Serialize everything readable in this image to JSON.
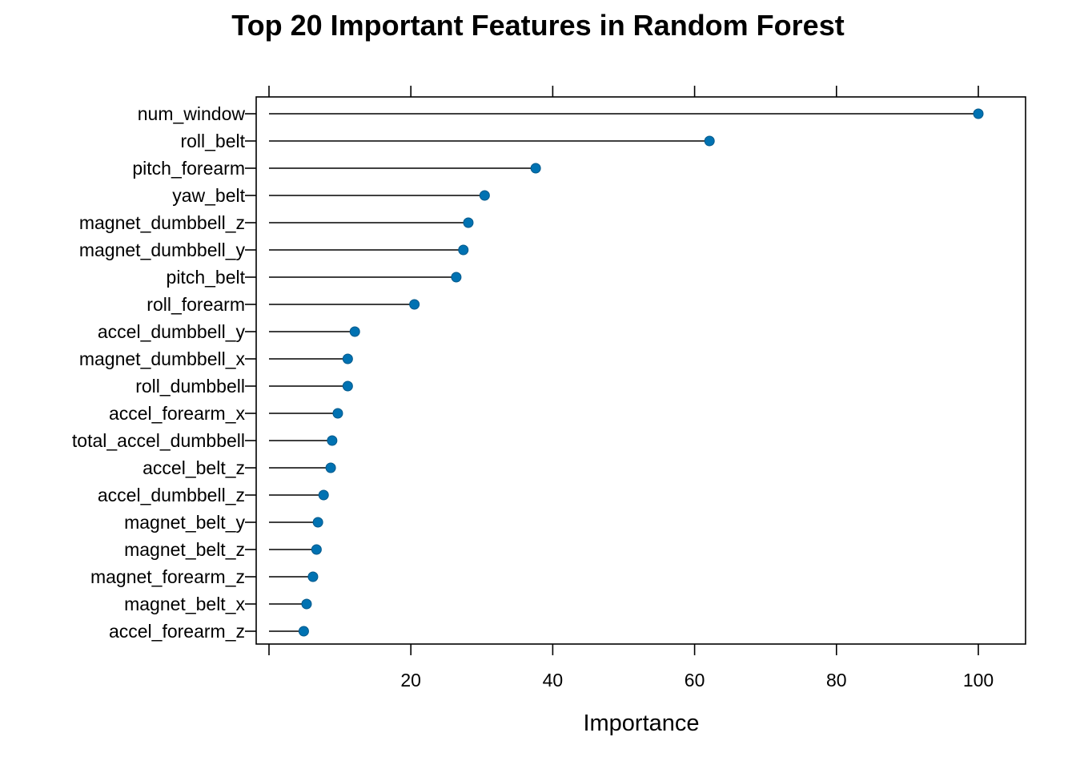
{
  "chart_data": {
    "type": "dot",
    "title": "Top 20 Important Features in Random Forest",
    "xlabel": "Importance",
    "ylabel": "",
    "xlim": [
      0,
      106.5
    ],
    "xticks": [
      20,
      40,
      60,
      80,
      100
    ],
    "grid": false,
    "legend": "none",
    "point_color": "#0072B2",
    "line_color": "#000000",
    "categories": [
      "num_window",
      "roll_belt",
      "pitch_forearm",
      "yaw_belt",
      "magnet_dumbbell_z",
      "magnet_dumbbell_y",
      "pitch_belt",
      "roll_forearm",
      "accel_dumbbell_y",
      "magnet_dumbbell_x",
      "roll_dumbbell",
      "accel_forearm_x",
      "total_accel_dumbbell",
      "accel_belt_z",
      "accel_dumbbell_z",
      "magnet_belt_y",
      "magnet_belt_z",
      "magnet_forearm_z",
      "magnet_belt_x",
      "accel_forearm_z"
    ],
    "values": [
      100,
      62.1,
      37.6,
      30.4,
      28.1,
      27.4,
      26.4,
      20.5,
      12.1,
      11.1,
      11.1,
      9.7,
      8.9,
      8.7,
      7.7,
      6.9,
      6.7,
      6.2,
      5.3,
      4.9
    ]
  }
}
